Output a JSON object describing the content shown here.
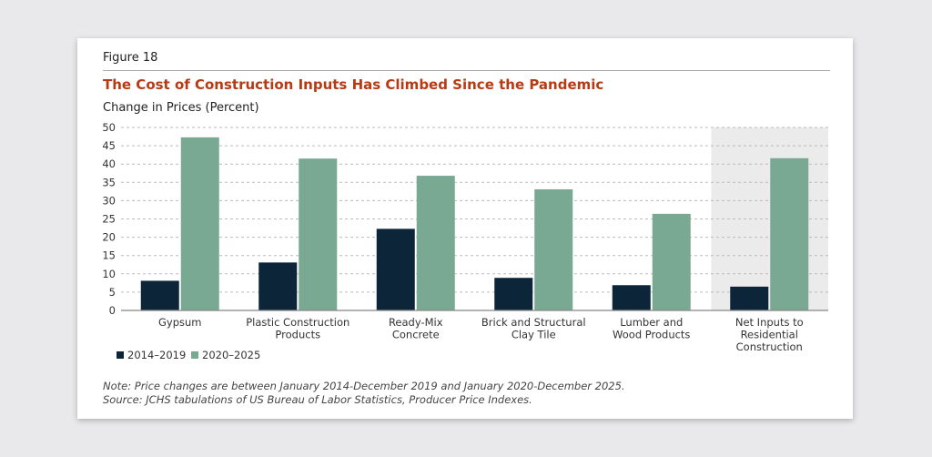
{
  "figure_label": "Figure 18",
  "chart_data": {
    "type": "bar",
    "title": "The Cost of Construction Inputs Has Climbed Since the Pandemic",
    "ylabel": "Change in Prices (Percent)",
    "ylim": [
      0,
      50
    ],
    "yticks": [
      0,
      5,
      10,
      15,
      20,
      25,
      30,
      35,
      40,
      45,
      50
    ],
    "grid": true,
    "legend_position": "bottom-left",
    "categories": [
      "Gypsum",
      "Plastic Construction Products",
      "Ready-Mix Concrete",
      "Brick and Structural Clay Tile",
      "Lumber and Wood Products",
      "Net Inputs to Residential Construction"
    ],
    "category_lines": [
      [
        "Gypsum"
      ],
      [
        "Plastic Construction",
        "Products"
      ],
      [
        "Ready-Mix",
        "Concrete"
      ],
      [
        "Brick and Structural",
        "Clay Tile"
      ],
      [
        "Lumber and",
        "Wood Products"
      ],
      [
        "Net Inputs to",
        "Residential",
        "Construction"
      ]
    ],
    "highlighted_category": "Net Inputs to Residential Construction",
    "series": [
      {
        "name": "2014–2019",
        "color": "#0c2538",
        "values": [
          8.1,
          13.1,
          22.3,
          8.9,
          6.9,
          6.5
        ]
      },
      {
        "name": "2020–2025",
        "color": "#79a993",
        "values": [
          47.3,
          41.5,
          36.8,
          33.1,
          26.4,
          41.6
        ]
      }
    ]
  },
  "note": "Note: Price changes are between January 2014-December 2019 and January 2020-December 2025.",
  "source": "Source: JCHS tabulations of US Bureau of Labor Statistics, Producer Price Indexes."
}
